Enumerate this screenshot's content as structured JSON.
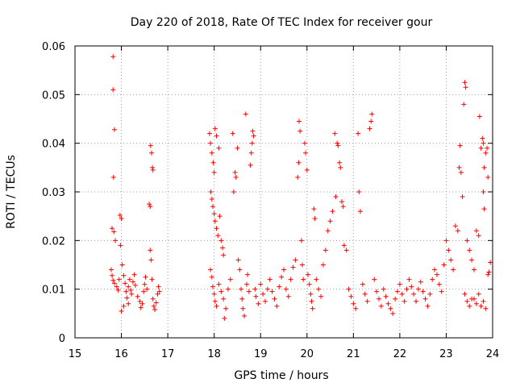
{
  "chart_data": {
    "type": "scatter",
    "title": "Day 220 of 2018, Rate Of TEC Index for receiver gour",
    "xlabel": "GPS time / hours",
    "ylabel": "ROTI / TECUs",
    "xlim": [
      15,
      24
    ],
    "ylim": [
      0,
      0.06
    ],
    "x_ticks": [
      "15",
      "16",
      "17",
      "18",
      "19",
      "20",
      "21",
      "22",
      "23",
      "24"
    ],
    "y_ticks": [
      "0",
      "0.01",
      "0.02",
      "0.03",
      "0.04",
      "0.05",
      "0.06"
    ],
    "grid": true,
    "marker": "+",
    "color": "#ff0000",
    "series": [
      {
        "points": [
          [
            15.82,
            0.0578
          ],
          [
            15.82,
            0.051
          ],
          [
            15.85,
            0.0428
          ],
          [
            15.83,
            0.033
          ],
          [
            15.8,
            0.0225
          ],
          [
            15.84,
            0.0218
          ],
          [
            15.87,
            0.02
          ],
          [
            15.78,
            0.014
          ],
          [
            15.8,
            0.0128
          ],
          [
            15.82,
            0.0118
          ],
          [
            15.85,
            0.0112
          ],
          [
            15.9,
            0.0105
          ],
          [
            15.93,
            0.0098
          ],
          [
            15.95,
            0.012
          ],
          [
            15.97,
            0.0252
          ],
          [
            16.0,
            0.0245
          ],
          [
            15.98,
            0.019
          ],
          [
            16.02,
            0.015
          ],
          [
            16.05,
            0.0128
          ],
          [
            16.08,
            0.0112
          ],
          [
            16.1,
            0.0095
          ],
          [
            16.12,
            0.0082
          ],
          [
            16.15,
            0.0105
          ],
          [
            16.18,
            0.012
          ],
          [
            16.2,
            0.0098
          ],
          [
            16.22,
            0.009
          ],
          [
            16.25,
            0.0115
          ],
          [
            16.28,
            0.013
          ],
          [
            16.3,
            0.0108
          ],
          [
            16.35,
            0.0085
          ],
          [
            16.4,
            0.0075
          ],
          [
            16.42,
            0.0062
          ],
          [
            16.45,
            0.007
          ],
          [
            16.48,
            0.0095
          ],
          [
            16.5,
            0.011
          ],
          [
            16.52,
            0.0125
          ],
          [
            16.55,
            0.01
          ],
          [
            16.6,
            0.0275
          ],
          [
            16.62,
            0.027
          ],
          [
            16.63,
            0.0395
          ],
          [
            16.65,
            0.038
          ],
          [
            16.67,
            0.035
          ],
          [
            16.68,
            0.0345
          ],
          [
            16.62,
            0.018
          ],
          [
            16.64,
            0.016
          ],
          [
            16.66,
            0.012
          ],
          [
            16.68,
            0.008
          ],
          [
            16.7,
            0.0065
          ],
          [
            16.72,
            0.0058
          ],
          [
            16.75,
            0.0072
          ],
          [
            16.78,
            0.009
          ],
          [
            16.8,
            0.0105
          ],
          [
            16.82,
            0.0095
          ],
          [
            16.0,
            0.0055
          ],
          [
            16.05,
            0.0065
          ],
          [
            16.15,
            0.007
          ],
          [
            17.9,
            0.042
          ],
          [
            17.92,
            0.04
          ],
          [
            17.95,
            0.038
          ],
          [
            17.98,
            0.036
          ],
          [
            18.0,
            0.034
          ],
          [
            18.02,
            0.043
          ],
          [
            18.05,
            0.0415
          ],
          [
            17.93,
            0.03
          ],
          [
            17.95,
            0.0285
          ],
          [
            17.97,
            0.027
          ],
          [
            18.0,
            0.0255
          ],
          [
            18.02,
            0.024
          ],
          [
            18.05,
            0.0225
          ],
          [
            18.08,
            0.021
          ],
          [
            18.1,
            0.039
          ],
          [
            18.12,
            0.025
          ],
          [
            18.15,
            0.02
          ],
          [
            18.18,
            0.0185
          ],
          [
            18.2,
            0.017
          ],
          [
            17.92,
            0.014
          ],
          [
            17.95,
            0.0125
          ],
          [
            17.97,
            0.0105
          ],
          [
            18.0,
            0.009
          ],
          [
            18.02,
            0.0075
          ],
          [
            18.05,
            0.0065
          ],
          [
            18.1,
            0.011
          ],
          [
            18.15,
            0.0095
          ],
          [
            18.2,
            0.008
          ],
          [
            18.22,
            0.004
          ],
          [
            18.25,
            0.006
          ],
          [
            18.3,
            0.01
          ],
          [
            18.35,
            0.012
          ],
          [
            18.4,
            0.042
          ],
          [
            18.42,
            0.03
          ],
          [
            18.45,
            0.034
          ],
          [
            18.47,
            0.033
          ],
          [
            18.5,
            0.039
          ],
          [
            18.52,
            0.016
          ],
          [
            18.55,
            0.014
          ],
          [
            18.58,
            0.01
          ],
          [
            18.6,
            0.008
          ],
          [
            18.62,
            0.006
          ],
          [
            18.65,
            0.0045
          ],
          [
            18.68,
            0.046
          ],
          [
            18.7,
            0.011
          ],
          [
            18.72,
            0.013
          ],
          [
            18.75,
            0.0095
          ],
          [
            18.78,
            0.0355
          ],
          [
            18.8,
            0.038
          ],
          [
            18.82,
            0.04
          ],
          [
            18.83,
            0.0425
          ],
          [
            18.85,
            0.0415
          ],
          [
            18.88,
            0.01
          ],
          [
            18.9,
            0.0085
          ],
          [
            18.95,
            0.007
          ],
          [
            19.0,
            0.011
          ],
          [
            19.05,
            0.009
          ],
          [
            19.1,
            0.0075
          ],
          [
            19.15,
            0.01
          ],
          [
            19.2,
            0.012
          ],
          [
            19.25,
            0.0095
          ],
          [
            19.3,
            0.008
          ],
          [
            19.35,
            0.0065
          ],
          [
            19.4,
            0.0105
          ],
          [
            19.45,
            0.0125
          ],
          [
            19.5,
            0.014
          ],
          [
            19.55,
            0.01
          ],
          [
            19.6,
            0.0085
          ],
          [
            19.65,
            0.012
          ],
          [
            19.7,
            0.0145
          ],
          [
            19.75,
            0.016
          ],
          [
            19.8,
            0.033
          ],
          [
            19.82,
            0.036
          ],
          [
            19.83,
            0.0445
          ],
          [
            19.85,
            0.0425
          ],
          [
            19.88,
            0.02
          ],
          [
            19.9,
            0.015
          ],
          [
            19.92,
            0.012
          ],
          [
            19.95,
            0.04
          ],
          [
            19.97,
            0.038
          ],
          [
            20.0,
            0.0345
          ],
          [
            20.02,
            0.013
          ],
          [
            20.05,
            0.011
          ],
          [
            20.08,
            0.009
          ],
          [
            20.1,
            0.0075
          ],
          [
            20.12,
            0.006
          ],
          [
            20.15,
            0.0265
          ],
          [
            20.17,
            0.0245
          ],
          [
            20.2,
            0.012
          ],
          [
            20.25,
            0.01
          ],
          [
            20.3,
            0.0085
          ],
          [
            20.35,
            0.015
          ],
          [
            20.4,
            0.018
          ],
          [
            20.45,
            0.022
          ],
          [
            20.5,
            0.024
          ],
          [
            20.55,
            0.026
          ],
          [
            20.6,
            0.042
          ],
          [
            20.62,
            0.029
          ],
          [
            20.65,
            0.04
          ],
          [
            20.67,
            0.0395
          ],
          [
            20.7,
            0.036
          ],
          [
            20.72,
            0.035
          ],
          [
            20.75,
            0.028
          ],
          [
            20.78,
            0.027
          ],
          [
            20.8,
            0.019
          ],
          [
            20.85,
            0.018
          ],
          [
            20.9,
            0.01
          ],
          [
            20.95,
            0.0085
          ],
          [
            21.0,
            0.007
          ],
          [
            21.05,
            0.006
          ],
          [
            21.1,
            0.042
          ],
          [
            21.12,
            0.03
          ],
          [
            21.15,
            0.026
          ],
          [
            21.2,
            0.011
          ],
          [
            21.25,
            0.009
          ],
          [
            21.3,
            0.0075
          ],
          [
            21.35,
            0.043
          ],
          [
            21.38,
            0.0445
          ],
          [
            21.4,
            0.046
          ],
          [
            21.45,
            0.012
          ],
          [
            21.5,
            0.0095
          ],
          [
            21.55,
            0.008
          ],
          [
            21.6,
            0.0065
          ],
          [
            21.65,
            0.01
          ],
          [
            21.7,
            0.0085
          ],
          [
            21.75,
            0.007
          ],
          [
            21.8,
            0.006
          ],
          [
            21.85,
            0.005
          ],
          [
            21.9,
            0.008
          ],
          [
            21.95,
            0.0095
          ],
          [
            22.0,
            0.011
          ],
          [
            22.05,
            0.009
          ],
          [
            22.1,
            0.0075
          ],
          [
            22.15,
            0.01
          ],
          [
            22.2,
            0.012
          ],
          [
            22.25,
            0.0105
          ],
          [
            22.3,
            0.009
          ],
          [
            22.35,
            0.0075
          ],
          [
            22.4,
            0.01
          ],
          [
            22.45,
            0.0115
          ],
          [
            22.5,
            0.0095
          ],
          [
            22.55,
            0.008
          ],
          [
            22.6,
            0.0065
          ],
          [
            22.65,
            0.009
          ],
          [
            22.7,
            0.012
          ],
          [
            22.75,
            0.014
          ],
          [
            22.8,
            0.013
          ],
          [
            22.85,
            0.011
          ],
          [
            22.9,
            0.0095
          ],
          [
            22.95,
            0.015
          ],
          [
            23.0,
            0.02
          ],
          [
            23.05,
            0.018
          ],
          [
            23.1,
            0.016
          ],
          [
            23.15,
            0.014
          ],
          [
            23.2,
            0.023
          ],
          [
            23.25,
            0.022
          ],
          [
            23.28,
            0.035
          ],
          [
            23.3,
            0.0395
          ],
          [
            23.32,
            0.034
          ],
          [
            23.35,
            0.029
          ],
          [
            23.38,
            0.048
          ],
          [
            23.4,
            0.0525
          ],
          [
            23.42,
            0.0515
          ],
          [
            23.45,
            0.02
          ],
          [
            23.5,
            0.018
          ],
          [
            23.55,
            0.016
          ],
          [
            23.6,
            0.014
          ],
          [
            23.65,
            0.022
          ],
          [
            23.7,
            0.021
          ],
          [
            23.72,
            0.0455
          ],
          [
            23.75,
            0.039
          ],
          [
            23.78,
            0.041
          ],
          [
            23.8,
            0.04
          ],
          [
            23.82,
            0.035
          ],
          [
            23.85,
            0.038
          ],
          [
            23.88,
            0.039
          ],
          [
            23.9,
            0.033
          ],
          [
            23.8,
            0.03
          ],
          [
            23.82,
            0.0265
          ],
          [
            23.6,
            0.008
          ],
          [
            23.65,
            0.007
          ],
          [
            23.7,
            0.009
          ],
          [
            23.75,
            0.0065
          ],
          [
            23.8,
            0.0075
          ],
          [
            23.85,
            0.006
          ],
          [
            23.9,
            0.013
          ],
          [
            23.92,
            0.0135
          ],
          [
            23.95,
            0.0155
          ],
          [
            23.4,
            0.009
          ],
          [
            23.45,
            0.0075
          ],
          [
            23.5,
            0.0065
          ],
          [
            23.55,
            0.008
          ]
        ]
      }
    ]
  }
}
